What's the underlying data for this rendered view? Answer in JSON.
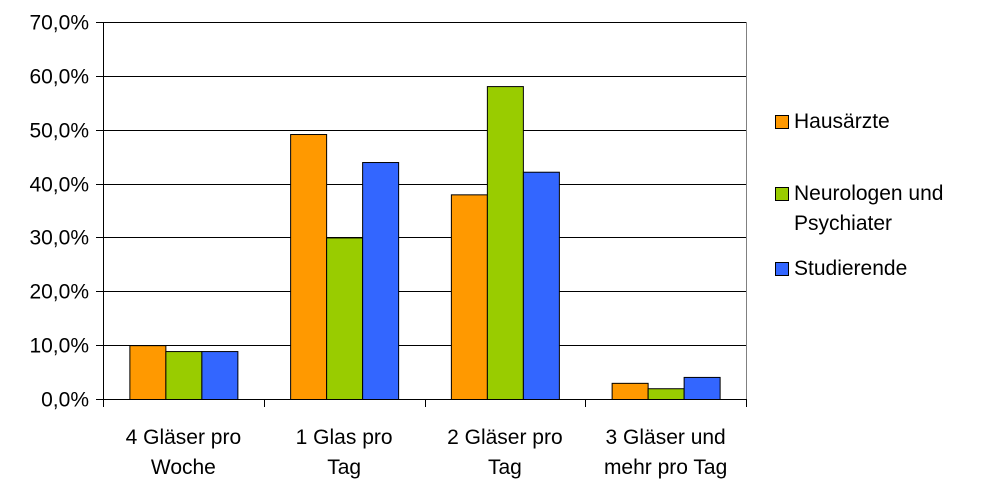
{
  "chart_data": {
    "type": "bar",
    "categories": [
      [
        "4 Gläser pro",
        "Woche"
      ],
      [
        "1 Glas pro",
        "Tag"
      ],
      [
        "2 Gläser pro",
        "Tag"
      ],
      [
        "3 Gläser und",
        "mehr pro Tag"
      ]
    ],
    "series": [
      {
        "name": "Hausärzte",
        "color": "#FF9900",
        "values": [
          10.0,
          49.2,
          38.0,
          3.0
        ]
      },
      {
        "name": "Neurologen und Psychiater",
        "legend_lines": [
          "Neurologen und",
          "Psychiater"
        ],
        "color": "#99CC00",
        "values": [
          8.9,
          30.0,
          58.1,
          2.0
        ]
      },
      {
        "name": "Studierende",
        "color": "#3366FF",
        "values": [
          8.9,
          44.0,
          42.2,
          4.1
        ]
      }
    ],
    "ylim": [
      0,
      70
    ],
    "yticks": [
      "0,0%",
      "10,0%",
      "20,0%",
      "30,0%",
      "40,0%",
      "50,0%",
      "60,0%",
      "70,0%"
    ],
    "grid": true,
    "legend_position": "right"
  }
}
